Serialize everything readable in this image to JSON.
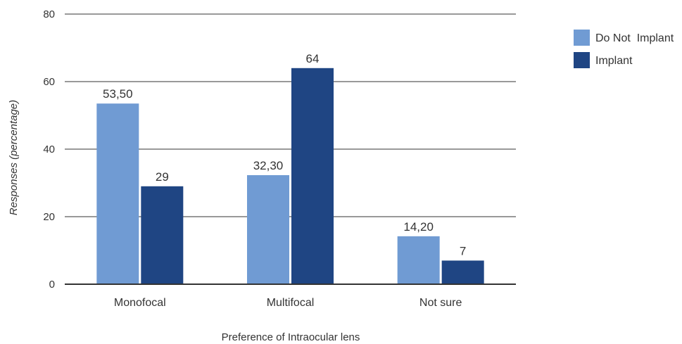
{
  "chart_data": {
    "type": "bar",
    "categories": [
      "Monofocal",
      "Multifocal",
      "Not sure"
    ],
    "series": [
      {
        "name": "Do Not  Implant",
        "values": [
          53.5,
          32.3,
          14.2
        ],
        "labels": [
          "53,50",
          "32,30",
          "14,20"
        ],
        "color": "#709BD3"
      },
      {
        "name": "Implant",
        "values": [
          29,
          64,
          7
        ],
        "labels": [
          "29",
          "64",
          "7"
        ],
        "color": "#1F4583"
      }
    ],
    "title": "",
    "xlabel": "Preference of Intraocular lens",
    "ylabel": "Responses (percentage)",
    "ylim": [
      0,
      80
    ],
    "yticks": [
      0,
      20,
      40,
      60,
      80
    ],
    "grid": true,
    "legend_position": "top-right"
  }
}
